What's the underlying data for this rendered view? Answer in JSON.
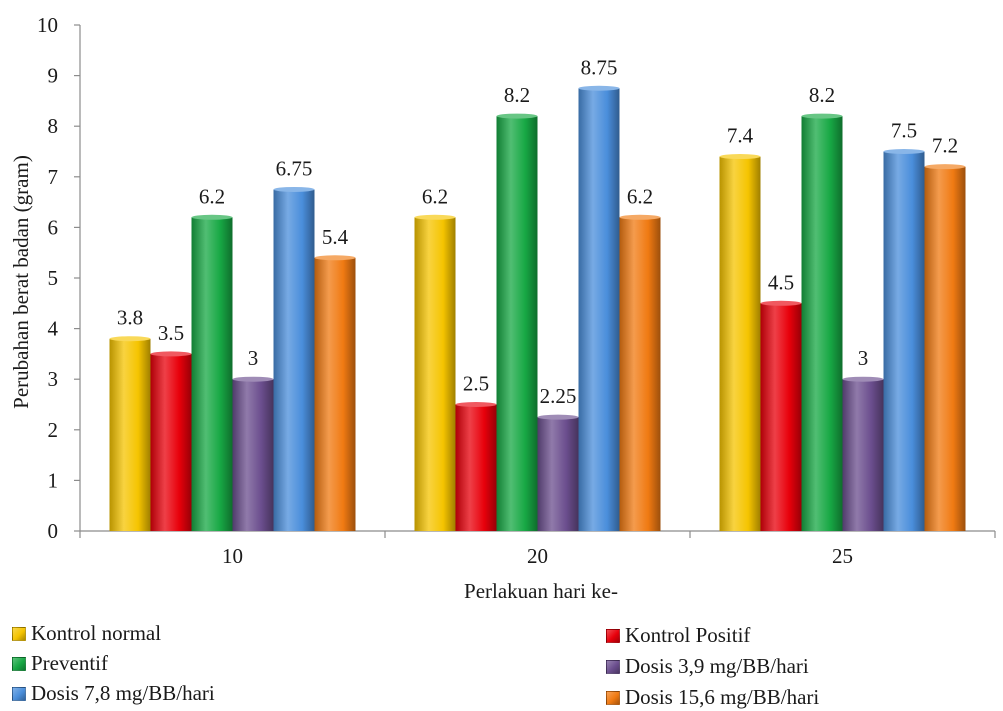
{
  "chart_data": {
    "type": "bar",
    "xlabel": "Perlakuan hari ke-",
    "ylabel": "Perubahan berat badan (gram)",
    "categories": [
      "10",
      "20",
      "25"
    ],
    "ylim": [
      0,
      10
    ],
    "yticks": [
      "0",
      "1",
      "2",
      "3",
      "4",
      "5",
      "6",
      "7",
      "8",
      "9",
      "10"
    ],
    "grid": false,
    "legend_position": "bottom",
    "series": [
      {
        "name": "Kontrol normal",
        "color": "#F5C400",
        "values": [
          3.8,
          6.2,
          7.4
        ],
        "labels": [
          "3.8",
          "6.2",
          "7.4"
        ]
      },
      {
        "name": "Kontrol Positif",
        "color": "#E8000B",
        "values": [
          3.5,
          2.5,
          4.5
        ],
        "labels": [
          "3.5",
          "2.5",
          "4.5"
        ]
      },
      {
        "name": "Preventif",
        "color": "#17A844",
        "values": [
          6.2,
          8.2,
          8.2
        ],
        "labels": [
          "6.2",
          "8.2",
          "8.2"
        ]
      },
      {
        "name": "Dosis 3,9 mg/BB/hari",
        "color": "#6B4E8E",
        "values": [
          3,
          2.25,
          3
        ],
        "labels": [
          "3",
          "2.25",
          "3"
        ]
      },
      {
        "name": "Dosis 7,8 mg/BB/hari",
        "color": "#4A8EDB",
        "values": [
          6.75,
          8.75,
          7.5
        ],
        "labels": [
          "6.75",
          "8.75",
          "7.5"
        ]
      },
      {
        "name": "Dosis 15,6 mg/BB/hari",
        "color": "#F07A12",
        "values": [
          5.4,
          6.2,
          7.2
        ],
        "labels": [
          "5.4",
          "6.2",
          "7.2"
        ]
      }
    ]
  }
}
